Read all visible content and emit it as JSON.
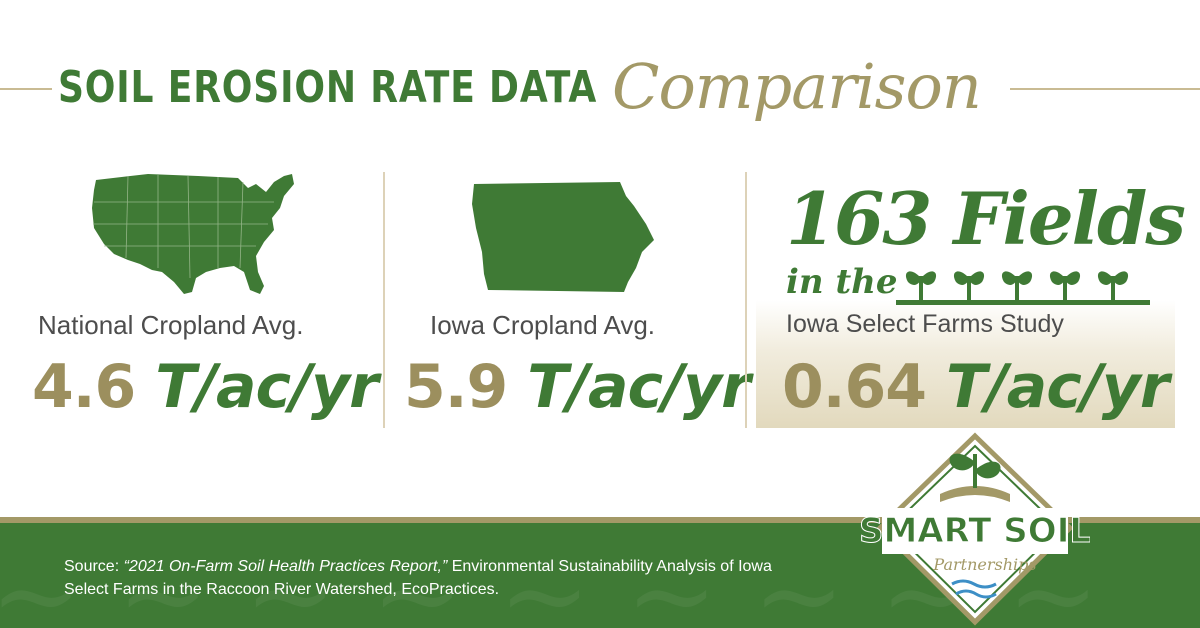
{
  "title": {
    "main": "SOIL EROSION RATE DATA",
    "script": "Comparison"
  },
  "columns": [
    {
      "label": "National Cropland  Avg.",
      "rate_number": "4.6",
      "rate_unit": "T/ac/yr"
    },
    {
      "label": "Iowa Cropland  Avg.",
      "rate_number": "5.9",
      "rate_unit": "T/ac/yr"
    },
    {
      "headline": "163 Fields",
      "subhead": "in the",
      "label": "Iowa Select Farms Study",
      "rate_number": "0.64",
      "rate_unit": "T/ac/yr"
    }
  ],
  "source": {
    "prefix": "Source: ",
    "report": "“2021 On-Farm Soil Health Practices Report,”",
    "rest": " Environmental Sustainability Analysis of Iowa Select Farms in the Raccoon River Watershed, EcoPractices."
  },
  "logo": {
    "line1": "SMART SOIL",
    "line2": "Partnerships"
  },
  "colors": {
    "green": "#3f7a35",
    "gold": "#a39967",
    "text": "#4d4d4d"
  }
}
